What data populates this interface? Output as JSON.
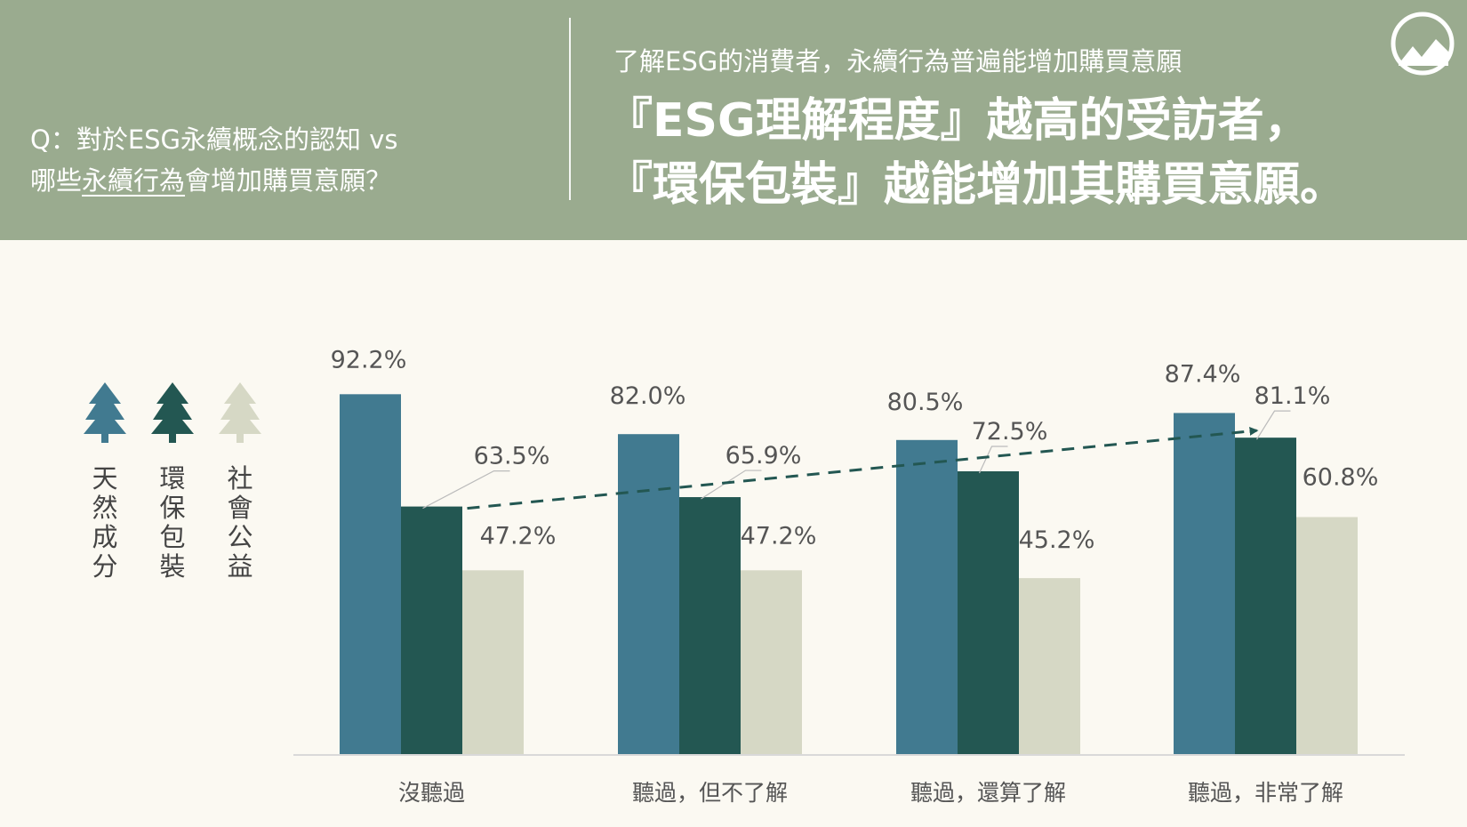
{
  "header": {
    "question_line1": "Q：對於ESG永續概念的認知 vs",
    "question_line2_prefix": "哪些",
    "question_line2_underlined": "永續行為",
    "question_line2_suffix": "會增加購買意願？",
    "subtitle": "了解ESG的消費者，永續行為普遍能增加購買意願",
    "headline_line1": "『ESG理解程度』越高的受訪者，",
    "headline_line2": "『環保包裝』越能增加其購買意願。"
  },
  "legend": {
    "items": [
      {
        "label_chars": [
          "天",
          "然",
          "成",
          "分"
        ],
        "color": "#417a90",
        "icon": "pine-tree-icon"
      },
      {
        "label_chars": [
          "環",
          "保",
          "包",
          "裝"
        ],
        "color": "#235752",
        "icon": "pine-tree-icon"
      },
      {
        "label_chars": [
          "社",
          "會",
          "公",
          "益"
        ],
        "color": "#d6d8c5",
        "icon": "pine-tree-icon"
      }
    ]
  },
  "colors": {
    "header_bg": "#9aab8f",
    "page_bg": "#fbf9f2",
    "series1": "#417a90",
    "series2": "#235752",
    "series3": "#d6d8c5",
    "trend_line": "#235752"
  },
  "chart_data": {
    "type": "bar",
    "categories": [
      "沒聽過",
      "聽過，但不了解",
      "聽過，還算了解",
      "聽過，非常了解"
    ],
    "series": [
      {
        "name": "天然成分",
        "values": [
          92.2,
          82.0,
          80.5,
          87.4
        ],
        "labels": [
          "92.2%",
          "82.0%",
          "80.5%",
          "87.4%"
        ]
      },
      {
        "name": "環保包裝",
        "values": [
          63.5,
          65.9,
          72.5,
          81.1
        ],
        "labels": [
          "63.5%",
          "65.9%",
          "72.5%",
          "81.1%"
        ]
      },
      {
        "name": "社會公益",
        "values": [
          47.2,
          47.2,
          45.2,
          60.8
        ],
        "labels": [
          "47.2%",
          "47.2%",
          "45.2%",
          "60.8%"
        ]
      }
    ],
    "ylim": [
      0,
      100
    ],
    "grid": false,
    "trend_line": {
      "series": "環保包裝",
      "style": "dashed-arrow"
    }
  }
}
